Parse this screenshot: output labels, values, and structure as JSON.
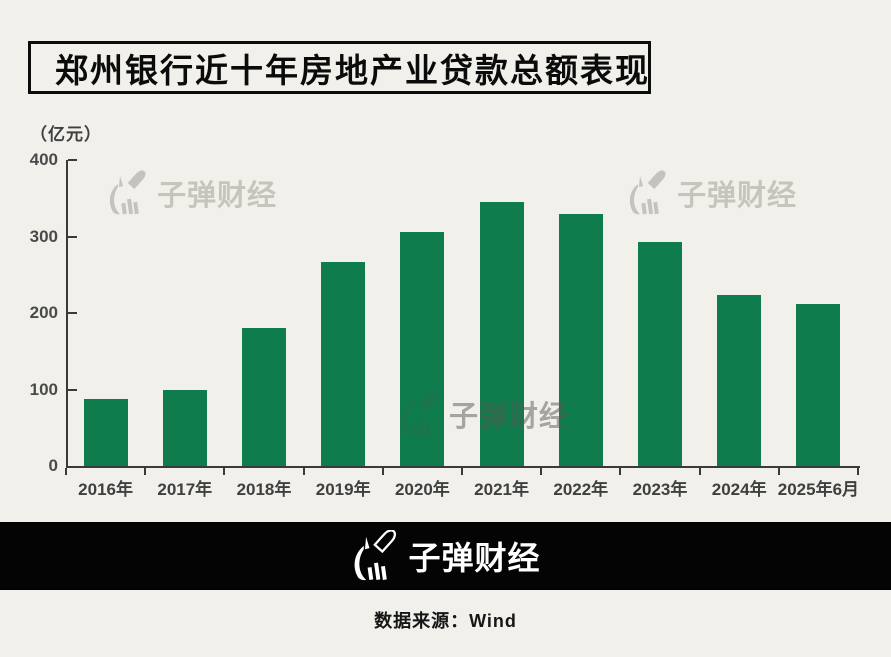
{
  "page": {
    "background_color": "#f1f0eb"
  },
  "title": {
    "text": "郑州银行近十年房地产业贷款总额表现"
  },
  "unit_label": "（亿元）",
  "chart_data": {
    "type": "bar",
    "title": "郑州银行近十年房地产业贷款总额表现",
    "unit": "亿元",
    "categories": [
      "2016年",
      "2017年",
      "2018年",
      "2019年",
      "2020年",
      "2021年",
      "2022年",
      "2023年",
      "2024年",
      "2025年6月"
    ],
    "values": [
      88,
      100,
      181,
      267,
      306,
      345,
      330,
      293,
      223,
      212
    ],
    "xlabel": "",
    "ylabel": "（亿元）",
    "yticks": [
      0,
      100,
      200,
      300,
      400
    ],
    "ylim": [
      0,
      400
    ],
    "bar_color": "#0e7c4d",
    "axis_color": "#3a3a3a",
    "tick_label_color": "#4a4a4a",
    "grid": false,
    "legend_position": "none"
  },
  "watermark": {
    "text": "子弹财经",
    "icon": "bullet-finance-logo-icon",
    "color": "#7d7b73"
  },
  "footer": {
    "logo_text": "子弹财经",
    "logo_icon": "bullet-finance-logo-icon",
    "bar_color": "#040404",
    "source": "数据来源：Wind"
  }
}
